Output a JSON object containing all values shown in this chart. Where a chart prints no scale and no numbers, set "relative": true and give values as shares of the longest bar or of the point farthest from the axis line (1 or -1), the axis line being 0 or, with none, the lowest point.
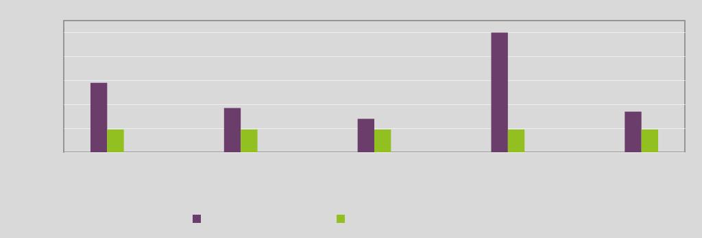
{
  "chart_data": {
    "type": "bar",
    "relative": true,
    "categories": [
      null,
      null,
      null,
      null,
      null
    ],
    "series": [
      {
        "color": "#6b3d6b",
        "values": [
          0.58,
          0.37,
          0.28,
          1,
          0.34
        ]
      },
      {
        "color": "#92c020",
        "values": [
          0.19,
          0.19,
          0.19,
          0.19,
          0.19
        ]
      }
    ],
    "grid": "y"
  }
}
